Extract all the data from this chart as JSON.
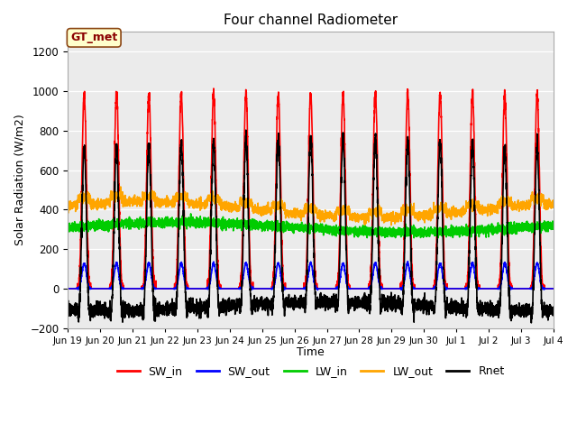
{
  "title": "Four channel Radiometer",
  "xlabel": "Time",
  "ylabel": "Solar Radiation (W/m2)",
  "annotation": "GT_met",
  "ylim": [
    -200,
    1300
  ],
  "yticks": [
    -200,
    0,
    200,
    400,
    600,
    800,
    1000,
    1200
  ],
  "plot_bg_color": "#ebebeb",
  "series": {
    "SW_in": {
      "color": "#ff0000",
      "lw": 1.2
    },
    "SW_out": {
      "color": "#0000ff",
      "lw": 1.2
    },
    "LW_in": {
      "color": "#00cc00",
      "lw": 1.2
    },
    "LW_out": {
      "color": "#ffa500",
      "lw": 1.2
    },
    "Rnet": {
      "color": "#000000",
      "lw": 1.2
    }
  },
  "x_tick_labels": [
    "Jun 19",
    "Jun 20",
    "Jun 21",
    "Jun 22",
    "Jun 23",
    "Jun 24",
    "Jun 25",
    "Jun 26",
    "Jun 27",
    "Jun 28",
    "Jun 29",
    "Jun 30",
    "Jul 1",
    "Jul 2",
    "Jul 3",
    "Jul 4"
  ],
  "n_days": 15,
  "pts_per_day": 288
}
